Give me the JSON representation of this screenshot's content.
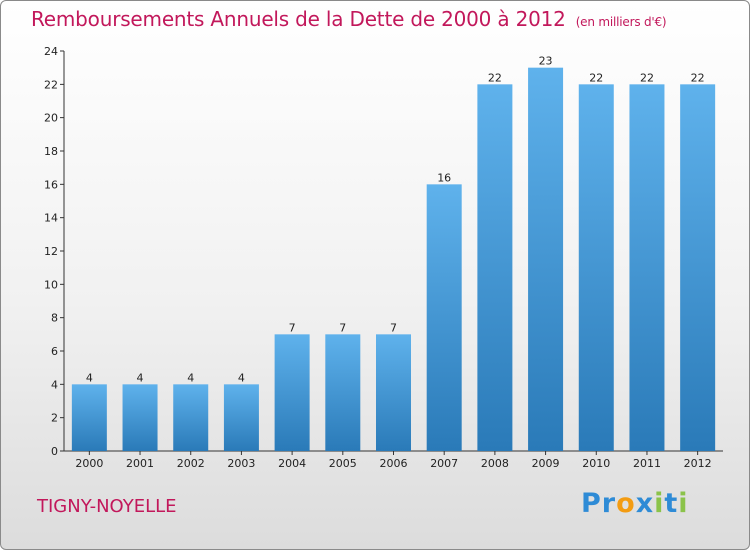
{
  "title": "Remboursements Annuels de la Dette de 2000 à 2012",
  "subtitle": "(en milliers d'€)",
  "commune": "TIGNY-NOYELLE",
  "logo": {
    "text": "Proxiti",
    "letters": [
      "P",
      "r",
      "o",
      "x",
      "i",
      "t",
      "i"
    ],
    "colors": [
      "#2e8bd6",
      "#2e8bd6",
      "#f39c12",
      "#2e8bd6",
      "#8bc34a",
      "#2e8bd6",
      "#8bc34a"
    ]
  },
  "colors": {
    "bar_top": "#5fb2ec",
    "bar_bottom": "#2a7ab8",
    "title": "#c2185b"
  },
  "chart_data": {
    "type": "bar",
    "categories": [
      "2000",
      "2001",
      "2002",
      "2003",
      "2004",
      "2005",
      "2006",
      "2007",
      "2008",
      "2009",
      "2010",
      "2011",
      "2012"
    ],
    "values": [
      4,
      4,
      4,
      4,
      7,
      7,
      7,
      16,
      22,
      23,
      22,
      22,
      22
    ],
    "title": "Remboursements Annuels de la Dette de 2000 à 2012",
    "xlabel": "",
    "ylabel": "",
    "ylim": [
      0,
      24
    ],
    "yticks": [
      0,
      2,
      4,
      6,
      8,
      10,
      12,
      14,
      16,
      18,
      20,
      22,
      24
    ],
    "grid": false,
    "legend": "none"
  }
}
